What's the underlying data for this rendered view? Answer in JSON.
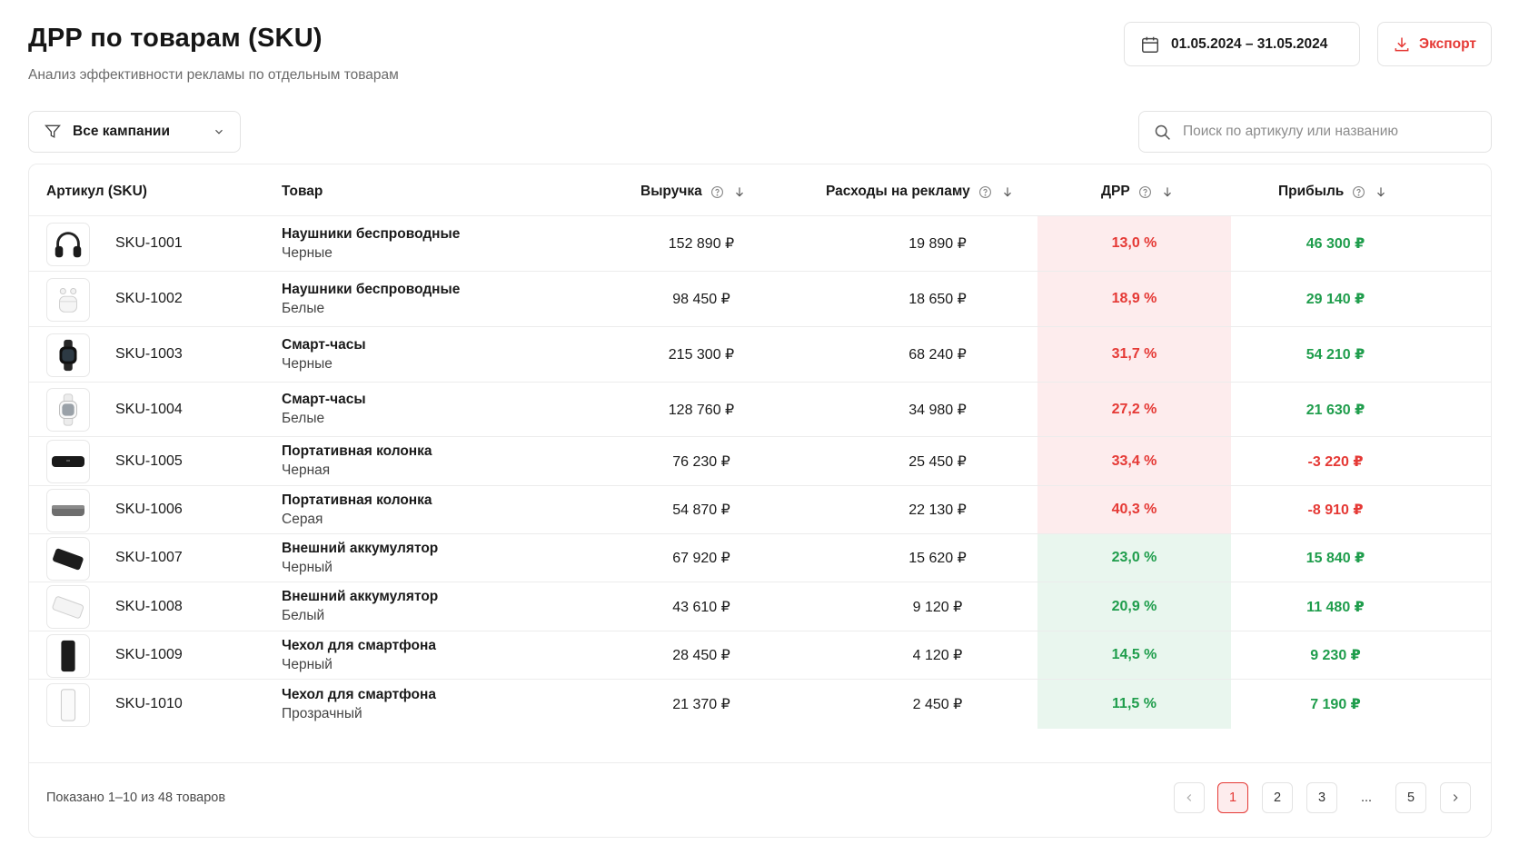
{
  "header": {
    "title": "ДРР по товарам (SKU)",
    "subtitle": "Анализ эффективности рекламы по отдельным товарам",
    "date_range": "01.05.2024 – 31.05.2024",
    "export_label": "Экспорт"
  },
  "filter": {
    "label": "Все кампании"
  },
  "search": {
    "placeholder": "Поиск по артикулу или названию"
  },
  "table": {
    "columns": {
      "sku": "Артикул (SKU)",
      "product": "Товар",
      "revenue": "Выручка",
      "spend": "Расходы на рекламу",
      "drr": "ДРР",
      "profit": "Прибыль"
    },
    "rows": [
      {
        "sku": "SKU-1001",
        "name": "Наушники беспроводные",
        "variant": "Черные",
        "revenue": "152 890 ₽",
        "spend": "19 890 ₽",
        "drr": "13,0 %",
        "profit": "46 300 ₽",
        "drr_status": "bad",
        "profit_status": "positive",
        "image": "headphones-black"
      },
      {
        "sku": "SKU-1002",
        "name": "Наушники беспроводные",
        "variant": "Белые",
        "revenue": "98 450 ₽",
        "spend": "18 650 ₽",
        "drr": "18,9 %",
        "profit": "29 140 ₽",
        "drr_status": "bad",
        "profit_status": "positive",
        "image": "earbuds-white"
      },
      {
        "sku": "SKU-1003",
        "name": "Смарт-часы",
        "variant": "Черные",
        "revenue": "215 300 ₽",
        "spend": "68 240 ₽",
        "drr": "31,7 %",
        "profit": "54 210 ₽",
        "drr_status": "bad",
        "profit_status": "positive",
        "image": "watch-black"
      },
      {
        "sku": "SKU-1004",
        "name": "Смарт-часы",
        "variant": "Белые",
        "revenue": "128 760 ₽",
        "spend": "34 980 ₽",
        "drr": "27,2 %",
        "profit": "21 630 ₽",
        "drr_status": "bad",
        "profit_status": "positive",
        "image": "watch-white"
      },
      {
        "sku": "SKU-1005",
        "name": "Портативная колонка",
        "variant": "Черная",
        "revenue": "76 230 ₽",
        "spend": "25 450 ₽",
        "drr": "33,4 %",
        "profit": "-3 220 ₽",
        "drr_status": "bad",
        "profit_status": "negative",
        "image": "speaker-black"
      },
      {
        "sku": "SKU-1006",
        "name": "Портативная колонка",
        "variant": "Серая",
        "revenue": "54 870 ₽",
        "spend": "22 130 ₽",
        "drr": "40,3 %",
        "profit": "-8 910 ₽",
        "drr_status": "bad",
        "profit_status": "negative",
        "image": "speaker-gray"
      },
      {
        "sku": "SKU-1007",
        "name": "Внешний аккумулятор",
        "variant": "Черный",
        "revenue": "67 920 ₽",
        "spend": "15 620 ₽",
        "drr": "23,0 %",
        "profit": "15 840 ₽",
        "drr_status": "good",
        "profit_status": "positive",
        "image": "powerbank-black"
      },
      {
        "sku": "SKU-1008",
        "name": "Внешний аккумулятор",
        "variant": "Белый",
        "revenue": "43 610 ₽",
        "spend": "9 120 ₽",
        "drr": "20,9 %",
        "profit": "11 480 ₽",
        "drr_status": "good",
        "profit_status": "positive",
        "image": "powerbank-white"
      },
      {
        "sku": "SKU-1009",
        "name": "Чехол для смартфона",
        "variant": "Черный",
        "revenue": "28 450 ₽",
        "spend": "4 120 ₽",
        "drr": "14,5 %",
        "profit": "9 230 ₽",
        "drr_status": "good",
        "profit_status": "positive",
        "image": "case-black"
      },
      {
        "sku": "SKU-1010",
        "name": "Чехол для смартфона",
        "variant": "Прозрачный",
        "revenue": "21 370 ₽",
        "spend": "2 450 ₽",
        "drr": "11,5 %",
        "profit": "7 190 ₽",
        "drr_status": "good",
        "profit_status": "positive",
        "image": "case-clear"
      }
    ]
  },
  "footer": {
    "shown_text": "Показано 1–10 из 48 товаров",
    "pages": [
      "1",
      "2",
      "3",
      "...",
      "5"
    ],
    "active_page": "1"
  },
  "colors": {
    "accent": "#e53935",
    "positive": "#1f9d4c",
    "bad_bg": "#fdeced",
    "good_bg": "#e9f6ee"
  }
}
